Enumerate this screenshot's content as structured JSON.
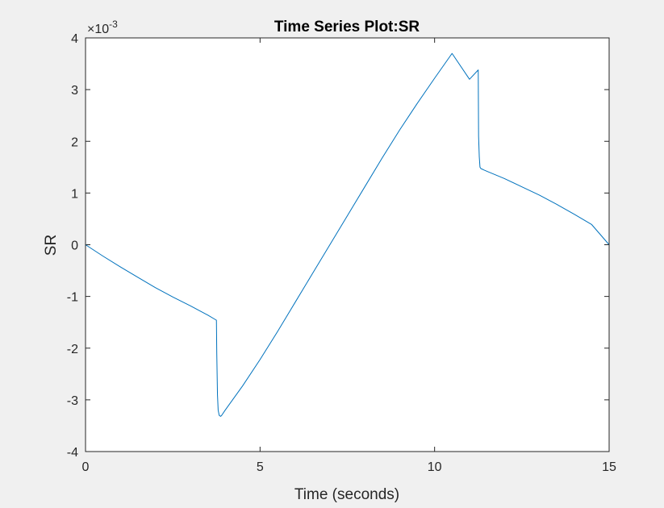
{
  "chart_data": {
    "type": "line",
    "title": "Time Series Plot:SR",
    "xlabel": "Time (seconds)",
    "ylabel": "SR",
    "xlim": [
      0,
      15
    ],
    "ylim": [
      -0.004,
      0.004
    ],
    "x_ticks": [
      "0",
      "5",
      "10",
      "15"
    ],
    "y_ticks": [
      "-4",
      "-3",
      "-2",
      "-1",
      "0",
      "1",
      "2",
      "3",
      "4"
    ],
    "y_exponent_base": "×10",
    "y_exponent_power": "-3",
    "grid": false,
    "series_color": "#0072bd",
    "series": [
      {
        "x": [
          0,
          0.5,
          1,
          1.5,
          2,
          2.5,
          3,
          3.5,
          3.75,
          3.76,
          3.78,
          3.8,
          3.83,
          3.87,
          3.9,
          4.0,
          4.5,
          5,
          5.5,
          6,
          6.5,
          7,
          7.5,
          8,
          8.5,
          9,
          9.5,
          10,
          10.5,
          11,
          11.25,
          11.26,
          11.28,
          11.3,
          11.33,
          11.37,
          11.4,
          11.5,
          12,
          12.5,
          13,
          13.5,
          14,
          14.5,
          15
        ],
        "y": [
          0,
          -0.00022,
          -0.00043,
          -0.00063,
          -0.00083,
          -0.00101,
          -0.00118,
          -0.00136,
          -0.00146,
          -0.0021,
          -0.0029,
          -0.0032,
          -0.0033,
          -0.00332,
          -0.0033,
          -0.0032,
          -0.00273,
          -0.00222,
          -0.00168,
          -0.00112,
          -0.00056,
          0.0,
          0.00056,
          0.00112,
          0.00168,
          0.00222,
          0.00273,
          0.00322,
          0.0037,
          0.0032,
          0.00338,
          0.0021,
          0.0017,
          0.0015,
          0.00147,
          0.00146,
          0.00145,
          0.00142,
          0.00128,
          0.00112,
          0.00096,
          0.00078,
          0.00059,
          0.00039,
          0.0
        ]
      }
    ]
  }
}
